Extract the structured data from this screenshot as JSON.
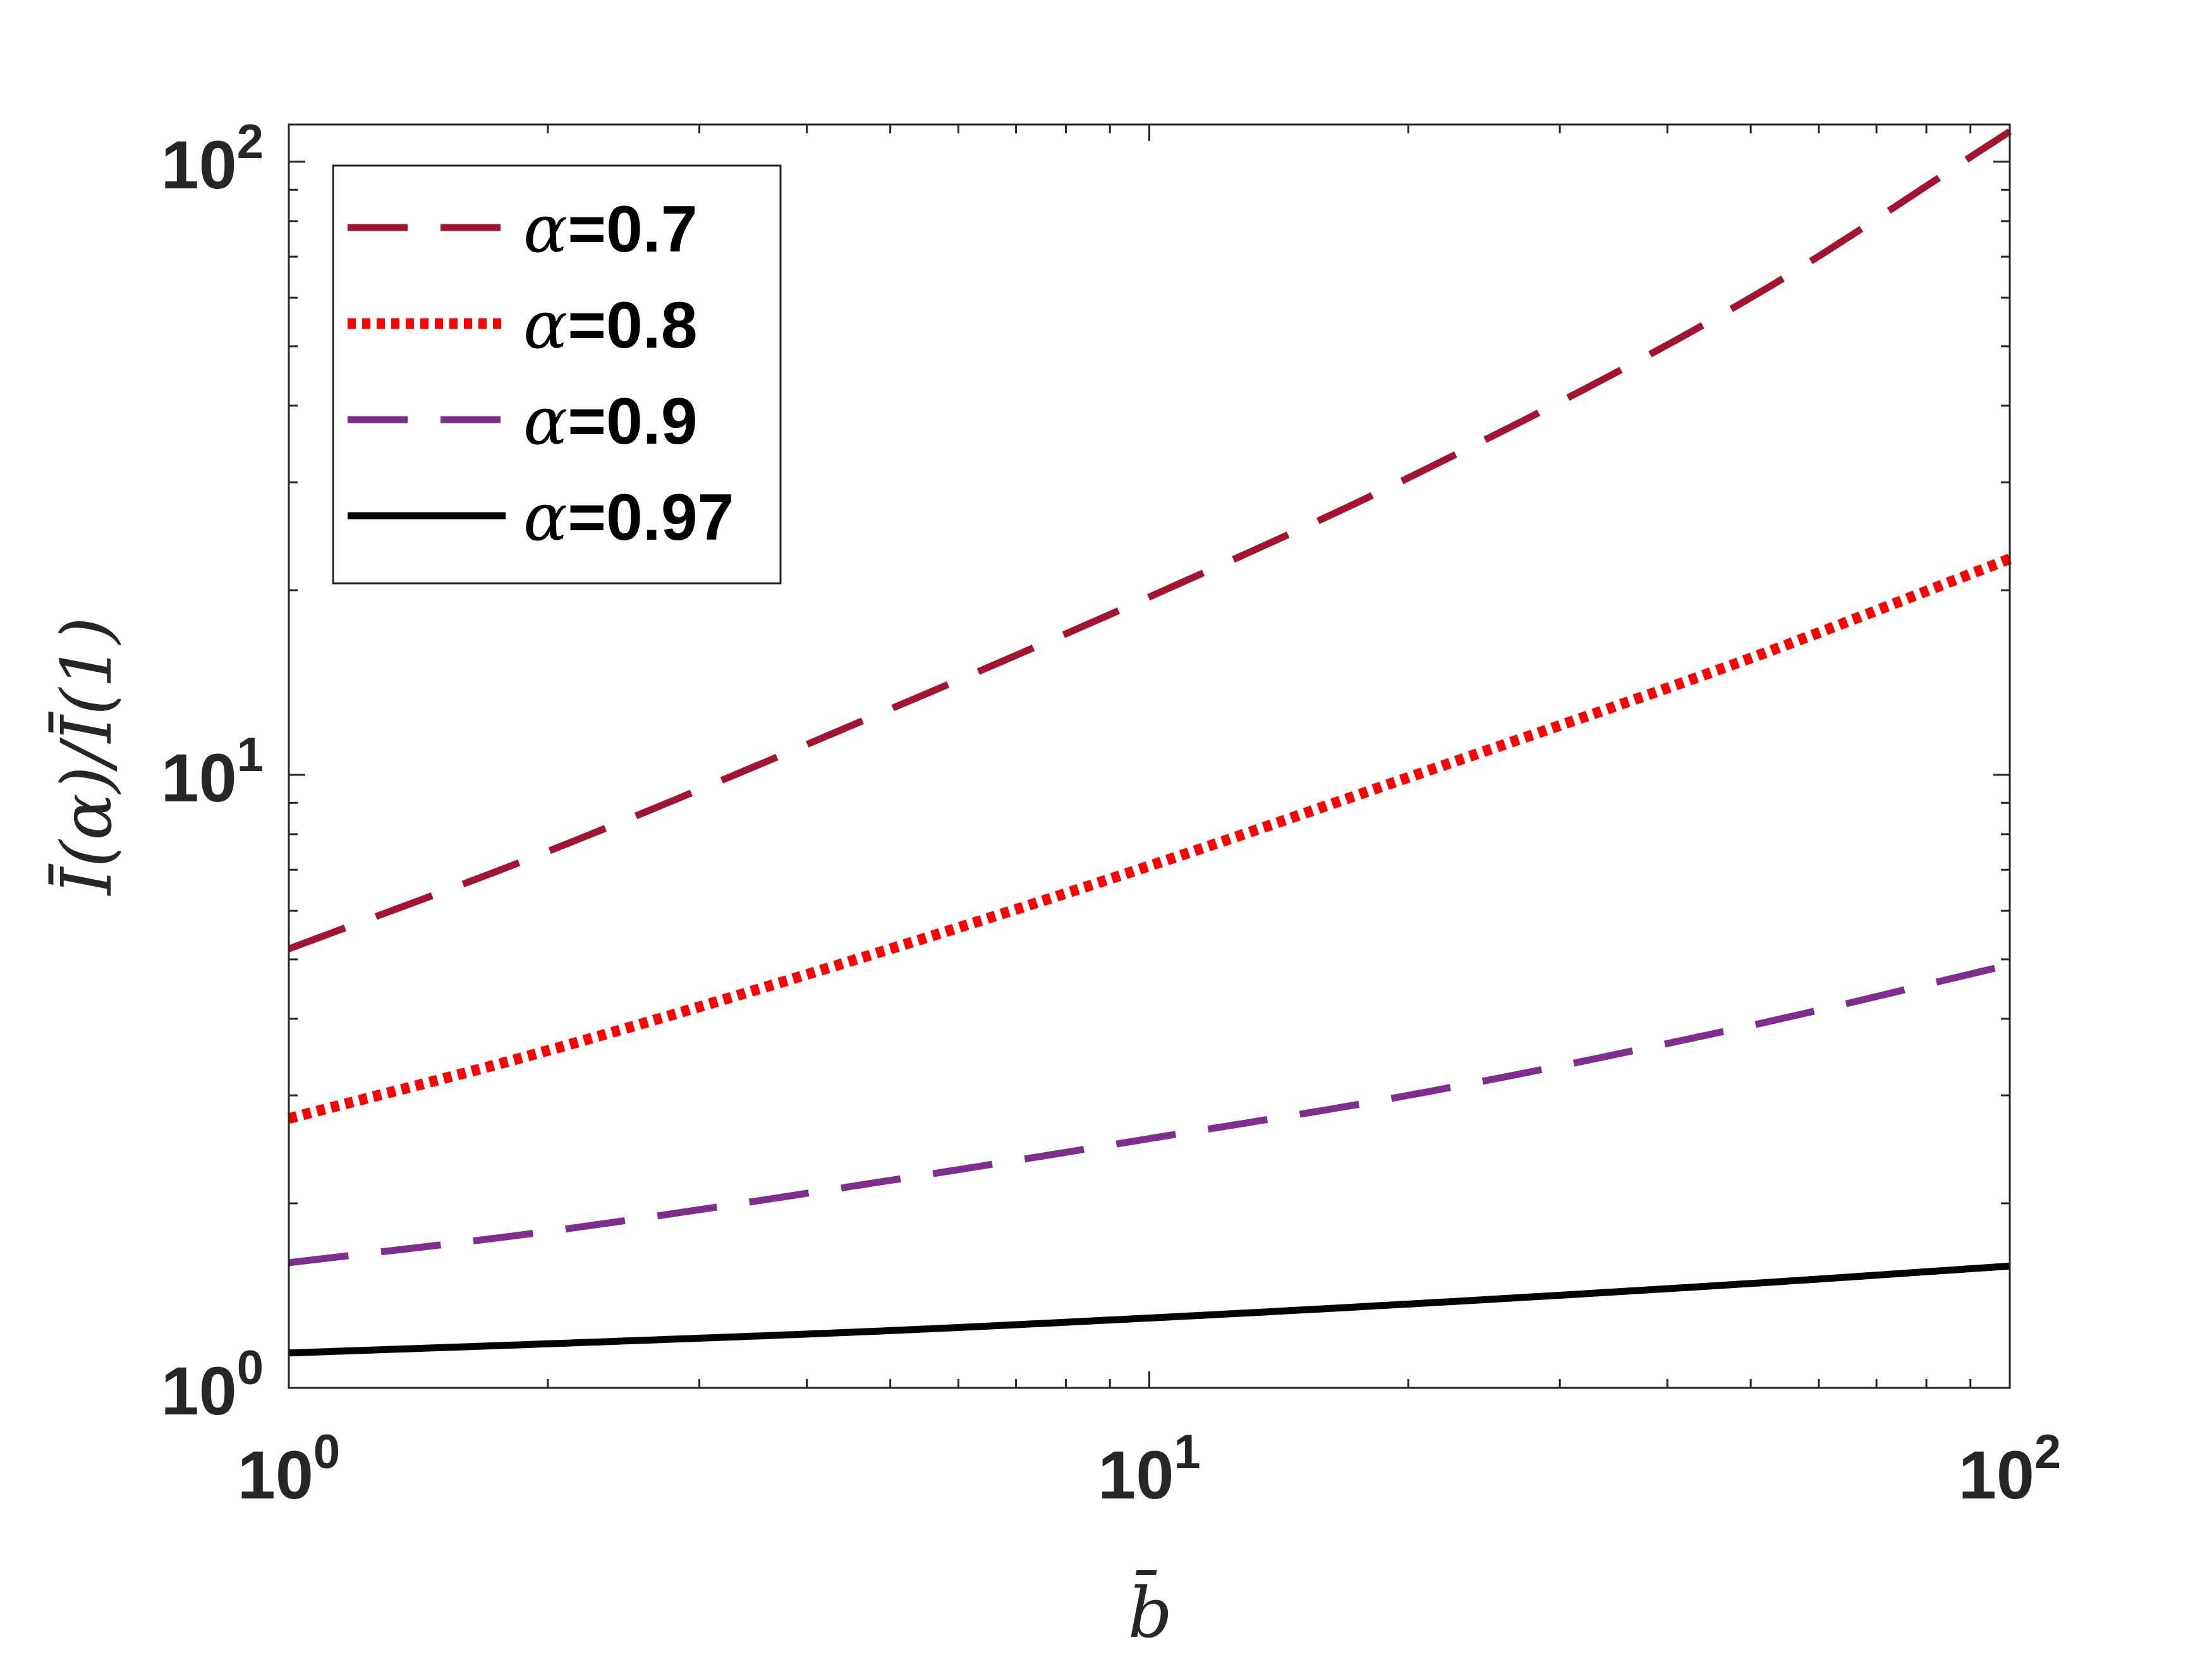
{
  "chart_data": {
    "type": "line",
    "xscale": "log",
    "yscale": "log",
    "xlim": [
      1,
      100
    ],
    "ylim": [
      1,
      115
    ],
    "xlabel": "b̄",
    "ylabel": "Ī(α)/Ī(1)",
    "xticks": [
      {
        "value": 1,
        "base": "10",
        "exp": "0"
      },
      {
        "value": 10,
        "base": "10",
        "exp": "1"
      },
      {
        "value": 100,
        "base": "10",
        "exp": "2"
      }
    ],
    "yticks": [
      {
        "value": 1,
        "base": "10",
        "exp": "0"
      },
      {
        "value": 10,
        "base": "10",
        "exp": "1"
      },
      {
        "value": 100,
        "base": "10",
        "exp": "2"
      }
    ],
    "grid": false,
    "legend_position": "top-left",
    "series": [
      {
        "name": "α=0.7",
        "color": "#A2142F",
        "style": "dashed",
        "x": [
          1,
          2,
          5,
          10,
          20,
          50,
          100
        ],
        "y": [
          5.2,
          7.5,
          12.8,
          19.5,
          30.5,
          60,
          112
        ]
      },
      {
        "name": "α=0.8",
        "color": "#FF0000",
        "style": "dotted",
        "x": [
          1,
          2,
          5,
          10,
          20,
          50,
          100
        ],
        "y": [
          2.75,
          3.55,
          5.2,
          7.1,
          9.9,
          15.5,
          22.5
        ]
      },
      {
        "name": "α=0.9",
        "color": "#7E2F8E",
        "style": "dashed",
        "x": [
          1,
          2,
          5,
          10,
          20,
          50,
          100
        ],
        "y": [
          1.6,
          1.8,
          2.18,
          2.55,
          3.0,
          3.9,
          4.9
        ]
      },
      {
        "name": "α=0.97",
        "color": "#000000",
        "style": "solid",
        "x": [
          1,
          2,
          5,
          10,
          20,
          50,
          100
        ],
        "y": [
          1.14,
          1.18,
          1.24,
          1.3,
          1.37,
          1.48,
          1.58
        ]
      }
    ]
  }
}
